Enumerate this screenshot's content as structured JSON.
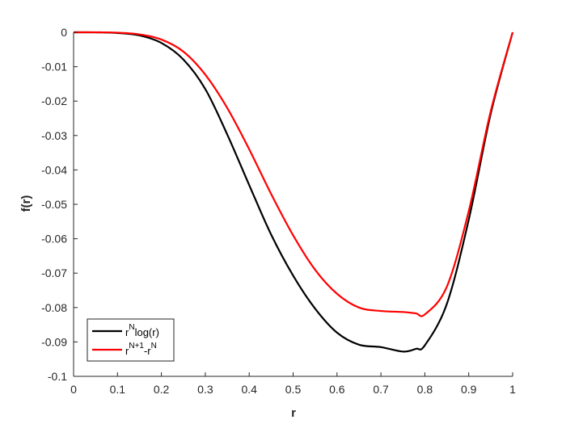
{
  "chart_data": {
    "type": "line",
    "title": "",
    "xlabel": "r",
    "ylabel": "f(r)",
    "xlim": [
      0,
      1
    ],
    "ylim": [
      -0.1,
      0
    ],
    "x_ticks": [
      "0",
      "0.1",
      "0.2",
      "0.3",
      "0.4",
      "0.5",
      "0.6",
      "0.7",
      "0.8",
      "0.9",
      "1"
    ],
    "y_ticks": [
      "0",
      "-0.01",
      "-0.02",
      "-0.03",
      "-0.04",
      "-0.05",
      "-0.06",
      "-0.07",
      "-0.08",
      "-0.09",
      "-0.1"
    ],
    "grid": false,
    "legend_position": "bottom-left",
    "x": [
      0,
      0.05,
      0.1,
      0.15,
      0.2,
      0.25,
      0.3,
      0.35,
      0.4,
      0.45,
      0.5,
      0.55,
      0.6,
      0.65,
      0.7,
      0.75,
      0.78,
      0.8,
      0.85,
      0.9,
      0.95,
      1
    ],
    "series": [
      {
        "legend": {
          "base": "r",
          "sup": "N",
          "rest": "log(r)"
        },
        "color": "#000000",
        "values": [
          0,
          -1e-05,
          -0.0002,
          -0.0009,
          -0.0031,
          -0.0079,
          -0.0165,
          -0.0297,
          -0.0444,
          -0.0588,
          -0.0707,
          -0.0803,
          -0.0873,
          -0.0908,
          -0.0915,
          -0.0928,
          -0.092,
          -0.091,
          -0.079,
          -0.0545,
          -0.0237,
          0
        ]
      },
      {
        "legend": {
          "base": "r",
          "sup": "N+1",
          "rest": "-r",
          "sup2": "N"
        },
        "color": "#ff0000",
        "values": [
          0,
          0,
          -0.0001,
          -0.0006,
          -0.0021,
          -0.0056,
          -0.0123,
          -0.022,
          -0.034,
          -0.047,
          -0.059,
          -0.069,
          -0.076,
          -0.08,
          -0.081,
          -0.0813,
          -0.0817,
          -0.082,
          -0.074,
          -0.052,
          -0.023,
          0
        ]
      }
    ]
  }
}
